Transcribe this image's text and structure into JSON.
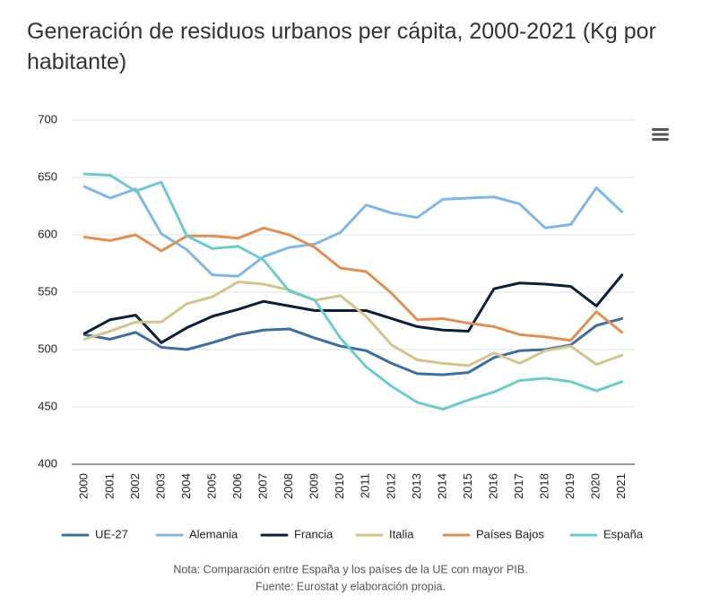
{
  "chart_data": {
    "type": "line",
    "title": "Generación de residuos urbanos per cápita, 2000-2021 (Kg por habitante)",
    "categories": [
      "2000",
      "2001",
      "2002",
      "2003",
      "2004",
      "2005",
      "2006",
      "2007",
      "2008",
      "2009",
      "2010",
      "2011",
      "2012",
      "2013",
      "2014",
      "2015",
      "2016",
      "2017",
      "2018",
      "2019",
      "2020",
      "2021"
    ],
    "series": [
      {
        "name": "UE-27",
        "color": "#3d6e9e",
        "values": [
          513,
          509,
          515,
          502,
          500,
          506,
          513,
          517,
          518,
          510,
          503,
          499,
          488,
          479,
          478,
          480,
          493,
          499,
          500,
          504,
          521,
          527
        ]
      },
      {
        "name": "Alemania",
        "color": "#7fb8e6",
        "values": [
          642,
          632,
          640,
          601,
          587,
          565,
          564,
          581,
          589,
          592,
          602,
          626,
          619,
          615,
          631,
          632,
          633,
          627,
          606,
          609,
          641,
          620
        ]
      },
      {
        "name": "Francia",
        "color": "#0b1f3a",
        "values": [
          514,
          526,
          530,
          506,
          519,
          529,
          535,
          542,
          538,
          534,
          534,
          534,
          527,
          520,
          517,
          516,
          553,
          558,
          557,
          555,
          538,
          565
        ]
      },
      {
        "name": "Italia",
        "color": "#d4c48c",
        "values": [
          509,
          516,
          524,
          524,
          540,
          546,
          559,
          557,
          552,
          543,
          547,
          529,
          504,
          491,
          488,
          486,
          497,
          488,
          499,
          503,
          487,
          495
        ]
      },
      {
        "name": "Países Bajos",
        "color": "#e08f55",
        "values": [
          598,
          595,
          600,
          586,
          599,
          599,
          597,
          606,
          600,
          589,
          571,
          568,
          549,
          526,
          527,
          523,
          520,
          513,
          511,
          508,
          533,
          515
        ]
      },
      {
        "name": "España",
        "color": "#6ccbcc",
        "values": [
          653,
          652,
          638,
          646,
          599,
          588,
          590,
          578,
          551,
          543,
          510,
          485,
          468,
          454,
          448,
          456,
          463,
          473,
          475,
          472,
          464,
          472
        ]
      }
    ],
    "ylim": [
      400,
      700
    ],
    "yticks": [
      400,
      450,
      500,
      550,
      600,
      650,
      700
    ],
    "grid": true,
    "note": "Nota: Comparación entre España y los países de la UE con mayor PIB.",
    "source": "Fuente: Eurostat y elaboración propia."
  }
}
